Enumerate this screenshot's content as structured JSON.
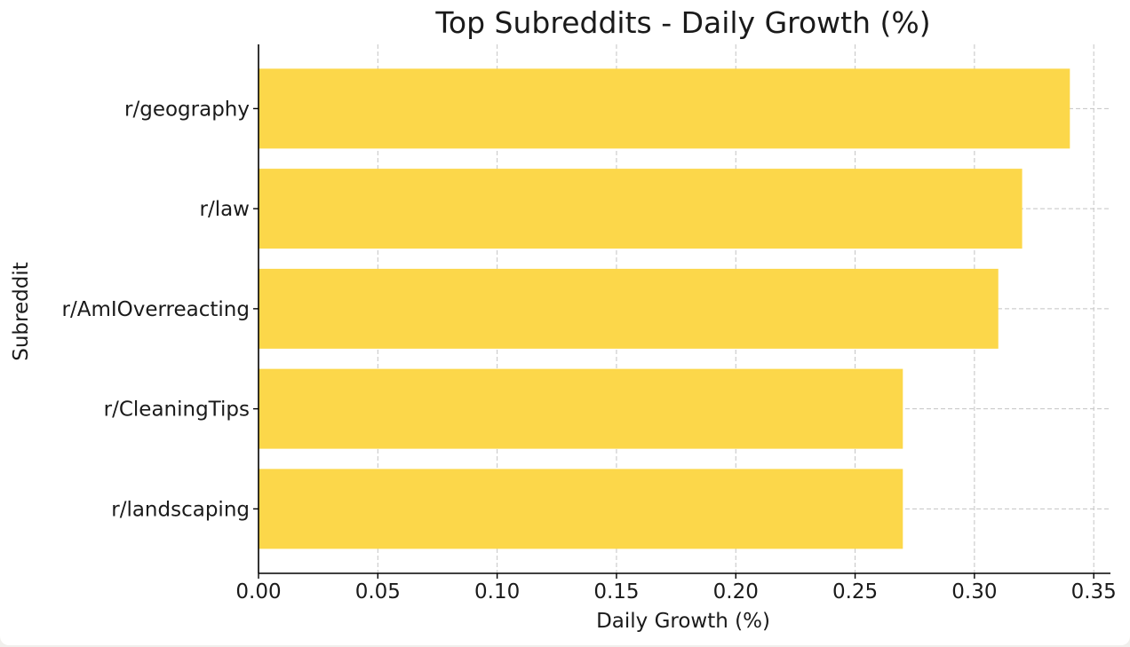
{
  "chart_data": {
    "type": "bar",
    "orientation": "horizontal",
    "title": "Top Subreddits - Daily Growth (%)",
    "xlabel": "Daily Growth (%)",
    "ylabel": "Subreddit",
    "categories": [
      "r/geography",
      "r/law",
      "r/AmIOverreacting",
      "r/CleaningTips",
      "r/landscaping"
    ],
    "values": [
      0.34,
      0.32,
      0.31,
      0.27,
      0.27
    ],
    "xlim": [
      0,
      0.357
    ],
    "xticks": [
      "0.00",
      "0.05",
      "0.10",
      "0.15",
      "0.20",
      "0.25",
      "0.30",
      "0.35"
    ],
    "xtick_values": [
      0,
      0.05,
      0.1,
      0.15,
      0.2,
      0.25,
      0.3,
      0.35
    ],
    "grid": true,
    "bar_color": "#fcd74a"
  }
}
